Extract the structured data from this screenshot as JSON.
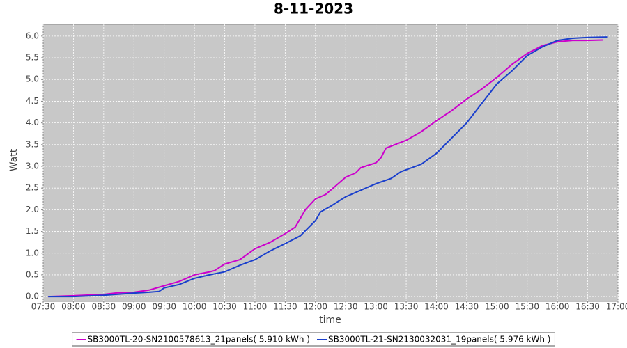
{
  "chart_data": {
    "type": "line",
    "title": "8-11-2023",
    "x_label": "time",
    "y_label": "Watt",
    "xlim": [
      "07:30",
      "17:00"
    ],
    "xticks": [
      "07:30",
      "08:00",
      "08:30",
      "09:00",
      "09:30",
      "10:00",
      "10:30",
      "11:00",
      "11:30",
      "12:00",
      "12:30",
      "13:00",
      "13:30",
      "14:00",
      "14:30",
      "15:00",
      "15:30",
      "16:00",
      "16:30",
      "17:00"
    ],
    "ylim": [
      -0.11,
      6.27
    ],
    "yticks": [
      {
        "value": 0,
        "label": "0.0"
      },
      0.5,
      {
        "value": 1,
        "label": "1.0"
      },
      1.5,
      {
        "value": 2,
        "label": "2.0"
      },
      2.5,
      {
        "value": 3,
        "label": "3.0"
      },
      3.5,
      {
        "value": 4,
        "label": "4.0"
      },
      4.5,
      {
        "value": 5,
        "label": "5.0"
      },
      5.5,
      {
        "value": 6,
        "label": "6.0"
      }
    ],
    "grid": true,
    "background": "#c8c8c8",
    "legend": "bottom",
    "series": [
      {
        "name": "SB3000TL-20-SN2100578613_21panels( 5.910 kWh )",
        "color": "#cc00cc",
        "x": [
          "07:35",
          "08:00",
          "08:30",
          "08:45",
          "09:00",
          "09:15",
          "09:30",
          "09:45",
          "10:00",
          "10:15",
          "10:20",
          "10:30",
          "10:45",
          "11:00",
          "11:15",
          "11:30",
          "11:40",
          "11:50",
          "12:00",
          "12:10",
          "12:20",
          "12:30",
          "12:40",
          "12:45",
          "13:00",
          "13:05",
          "13:10",
          "13:30",
          "13:45",
          "14:00",
          "14:15",
          "14:30",
          "14:45",
          "15:00",
          "15:15",
          "15:30",
          "15:45",
          "16:00",
          "16:15",
          "16:30",
          "16:45"
        ],
        "values": [
          0.0,
          0.02,
          0.05,
          0.09,
          0.1,
          0.15,
          0.25,
          0.35,
          0.5,
          0.57,
          0.6,
          0.75,
          0.85,
          1.1,
          1.25,
          1.45,
          1.6,
          2.0,
          2.25,
          2.35,
          2.55,
          2.75,
          2.85,
          2.97,
          3.08,
          3.2,
          3.42,
          3.6,
          3.8,
          4.05,
          4.28,
          4.55,
          4.78,
          5.05,
          5.35,
          5.6,
          5.78,
          5.87,
          5.9,
          5.9,
          5.91
        ]
      },
      {
        "name": "SB3000TL-21-SN2130032031_19panels( 5.976 kWh )",
        "color": "#1a3fcc",
        "x": [
          "07:35",
          "08:00",
          "08:30",
          "09:00",
          "09:15",
          "09:25",
          "09:30",
          "09:45",
          "10:00",
          "10:15",
          "10:30",
          "10:45",
          "11:00",
          "11:15",
          "11:30",
          "11:45",
          "12:00",
          "12:05",
          "12:15",
          "12:30",
          "12:45",
          "13:00",
          "13:15",
          "13:25",
          "13:45",
          "14:00",
          "14:15",
          "14:30",
          "14:45",
          "15:00",
          "15:15",
          "15:30",
          "15:45",
          "16:00",
          "16:15",
          "16:30",
          "16:50"
        ],
        "values": [
          0.0,
          0.0,
          0.03,
          0.08,
          0.1,
          0.12,
          0.2,
          0.28,
          0.42,
          0.5,
          0.57,
          0.72,
          0.85,
          1.05,
          1.22,
          1.4,
          1.75,
          1.95,
          2.08,
          2.3,
          2.45,
          2.6,
          2.72,
          2.88,
          3.05,
          3.3,
          3.65,
          4.0,
          4.45,
          4.9,
          5.2,
          5.55,
          5.75,
          5.9,
          5.95,
          5.97,
          5.98
        ]
      }
    ]
  }
}
